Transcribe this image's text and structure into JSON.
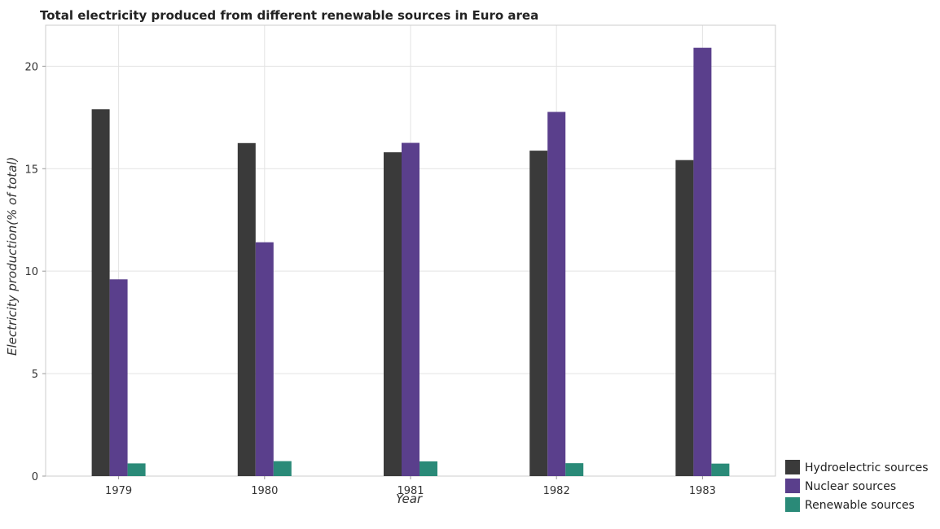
{
  "chart_data": {
    "type": "bar",
    "title": "Total electricity produced from different renewable sources in Euro area",
    "xlabel": "Year",
    "ylabel": "Electricity production(% of total)",
    "categories": [
      "1979",
      "1980",
      "1981",
      "1982",
      "1983"
    ],
    "ylim": [
      0,
      22
    ],
    "yticks": [
      0,
      5,
      10,
      15,
      20
    ],
    "grid": true,
    "legend_position": "bottom-right",
    "series": [
      {
        "name": "Hydroelectric sources",
        "color": "#3a3a3a",
        "values": [
          17.9,
          16.25,
          15.8,
          15.88,
          15.42
        ]
      },
      {
        "name": "Nuclear sources",
        "color": "#5a3f8c",
        "values": [
          9.6,
          11.41,
          16.26,
          17.77,
          20.9
        ]
      },
      {
        "name": "Renewable sources",
        "color": "#2a8a78",
        "values": [
          0.62,
          0.73,
          0.72,
          0.63,
          0.61
        ]
      }
    ]
  }
}
